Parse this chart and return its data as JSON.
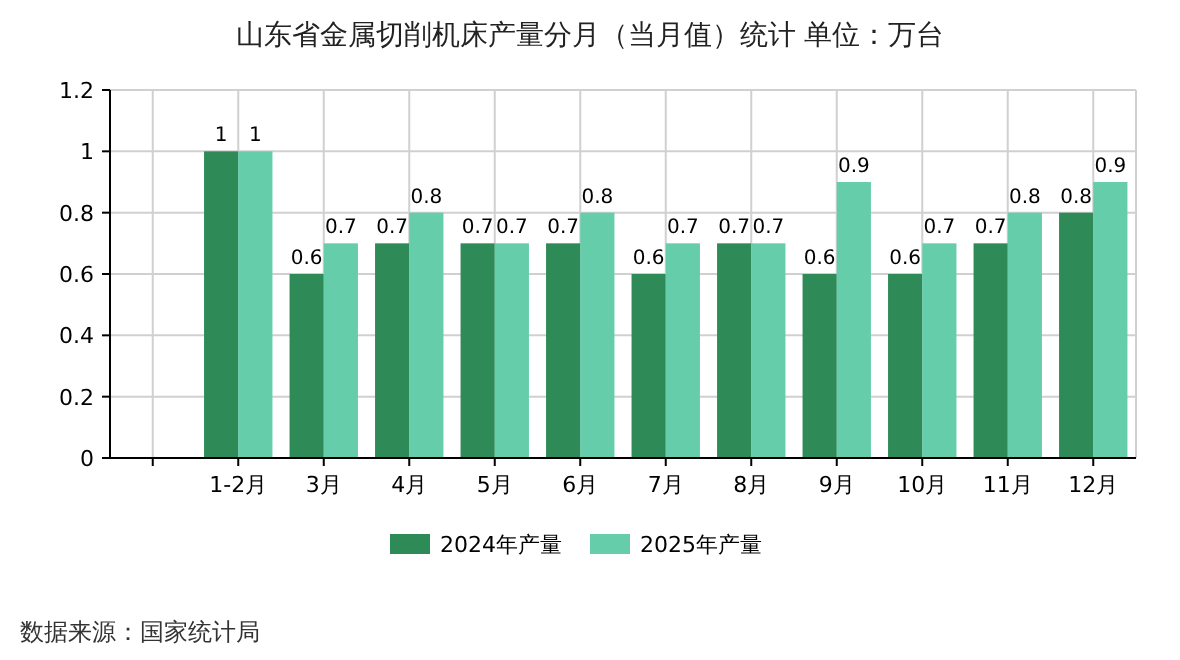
{
  "chart_data": {
    "type": "bar",
    "title": "山东省金属切削机床产量分月（当月值）统计 单位：万台",
    "categories": [
      null,
      "1-2月",
      "3月",
      "4月",
      "5月",
      "6月",
      "7月",
      "8月",
      "9月",
      "10月",
      "11月",
      "12月"
    ],
    "series": [
      {
        "name": "2024年产量",
        "color": "#2e8b57",
        "values": [
          null,
          1,
          0.6,
          0.7,
          0.7,
          0.7,
          0.6,
          0.7,
          0.6,
          0.6,
          0.7,
          0.8
        ]
      },
      {
        "name": "2025年产量",
        "color": "#66cdaa",
        "values": [
          null,
          1,
          0.7,
          0.8,
          0.7,
          0.8,
          0.7,
          0.7,
          0.9,
          0.7,
          0.8,
          0.9
        ]
      }
    ],
    "ylim": [
      0,
      1.2
    ],
    "yticks": [
      0,
      0.2,
      0.4,
      0.6,
      0.8,
      1,
      1.2
    ],
    "grid": true,
    "legend": "bottom",
    "data_labels": true,
    "annotations": [
      "数据来源：国家统计局"
    ]
  }
}
